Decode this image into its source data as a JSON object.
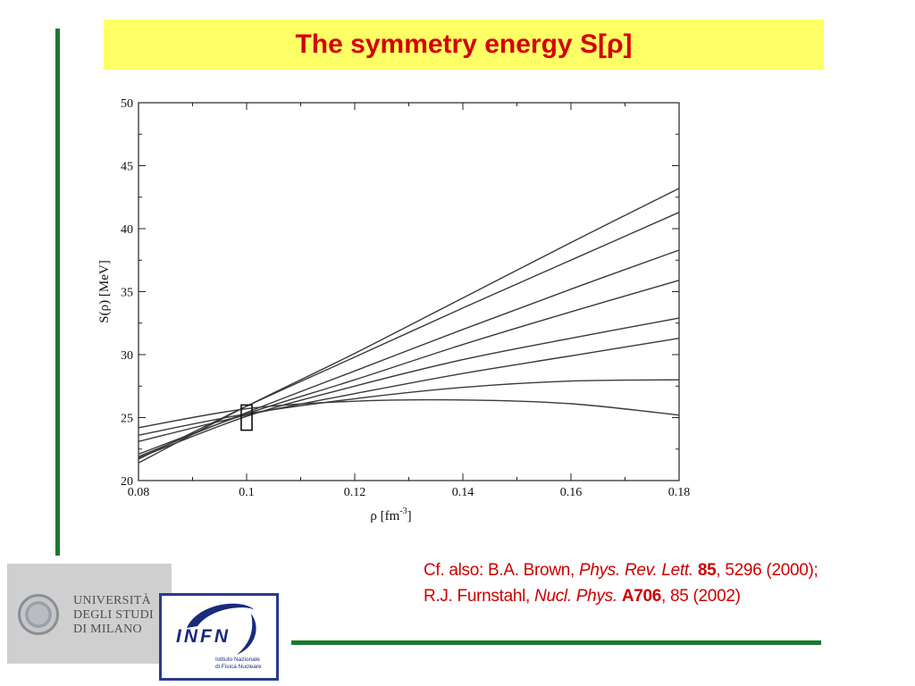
{
  "title": "The symmetry energy S[ρ]",
  "chart_data": {
    "type": "line",
    "xlabel": "ρ",
    "xlabel_unit": "[fm",
    "xlabel_exp": "-3",
    "ylabel": "S(ρ) [MeV]",
    "xlim": [
      0.08,
      0.18
    ],
    "ylim": [
      20,
      50
    ],
    "xticks": [
      0.08,
      0.1,
      0.12,
      0.14,
      0.16,
      0.18
    ],
    "xtick_labels": [
      "0.08",
      "0.1",
      "0.12",
      "0.14",
      "0.16",
      "0.18"
    ],
    "yticks": [
      20,
      25,
      30,
      35,
      40,
      45,
      50
    ],
    "ytick_labels": [
      "20",
      "25",
      "30",
      "35",
      "40",
      "45",
      "50"
    ],
    "grid": false,
    "series": [
      {
        "x": [
          0.08,
          0.1,
          0.12,
          0.14,
          0.16,
          0.18
        ],
        "values": [
          21.4,
          25.9,
          30.1,
          34.5,
          38.9,
          43.2
        ]
      },
      {
        "x": [
          0.08,
          0.1,
          0.12,
          0.14,
          0.16,
          0.18
        ],
        "values": [
          21.7,
          25.9,
          29.8,
          33.7,
          37.5,
          41.3
        ]
      },
      {
        "x": [
          0.08,
          0.1,
          0.12,
          0.14,
          0.16,
          0.18
        ],
        "values": [
          21.9,
          25.4,
          28.7,
          32.0,
          35.2,
          38.3
        ]
      },
      {
        "x": [
          0.08,
          0.1,
          0.12,
          0.14,
          0.16,
          0.18
        ],
        "values": [
          22.1,
          25.3,
          28.0,
          30.8,
          33.4,
          35.9
        ]
      },
      {
        "x": [
          0.08,
          0.1,
          0.12,
          0.14,
          0.16,
          0.18
        ],
        "values": [
          21.8,
          25.1,
          27.5,
          29.6,
          31.3,
          32.9
        ]
      },
      {
        "x": [
          0.08,
          0.1,
          0.12,
          0.14,
          0.16,
          0.18
        ],
        "values": [
          23.1,
          25.2,
          26.9,
          28.5,
          29.9,
          31.3
        ]
      },
      {
        "x": [
          0.08,
          0.1,
          0.12,
          0.14,
          0.16,
          0.18
        ],
        "values": [
          23.6,
          25.3,
          26.5,
          27.4,
          27.9,
          28.0
        ]
      },
      {
        "x": [
          0.08,
          0.1,
          0.12,
          0.14,
          0.16,
          0.18
        ],
        "values": [
          24.2,
          25.7,
          26.3,
          26.4,
          26.1,
          25.2
        ]
      }
    ],
    "annotation_box": {
      "x": [
        0.099,
        0.101
      ],
      "y": [
        24.0,
        26.0
      ]
    }
  },
  "citation": {
    "line1_prefix": "Cf. also: B.A. Brown, ",
    "line1_journal": "Phys. Rev. Lett.",
    "line1_volume": "85",
    "line1_rest": ", 5296 (2000);",
    "line2_prefix": "R.J. Furnstahl, ",
    "line2_journal": "Nucl. Phys.",
    "line2_volume": "A706",
    "line2_rest": ", 85 (2002)"
  },
  "logos": {
    "unimi_line1": "UNIVERSITÀ",
    "unimi_line2": "DEGLI STUDI",
    "unimi_line3": "DI MILANO",
    "infn_word": "INFN",
    "infn_sub1": "Istituto Nazionale",
    "infn_sub2": "di Fisica Nucleare"
  },
  "colors": {
    "title_text": "#d40000",
    "title_bg": "#ffff66",
    "accent_bar": "#1a7a2e",
    "citation_text": "#cc0000",
    "curve": "#3a3a3a"
  }
}
